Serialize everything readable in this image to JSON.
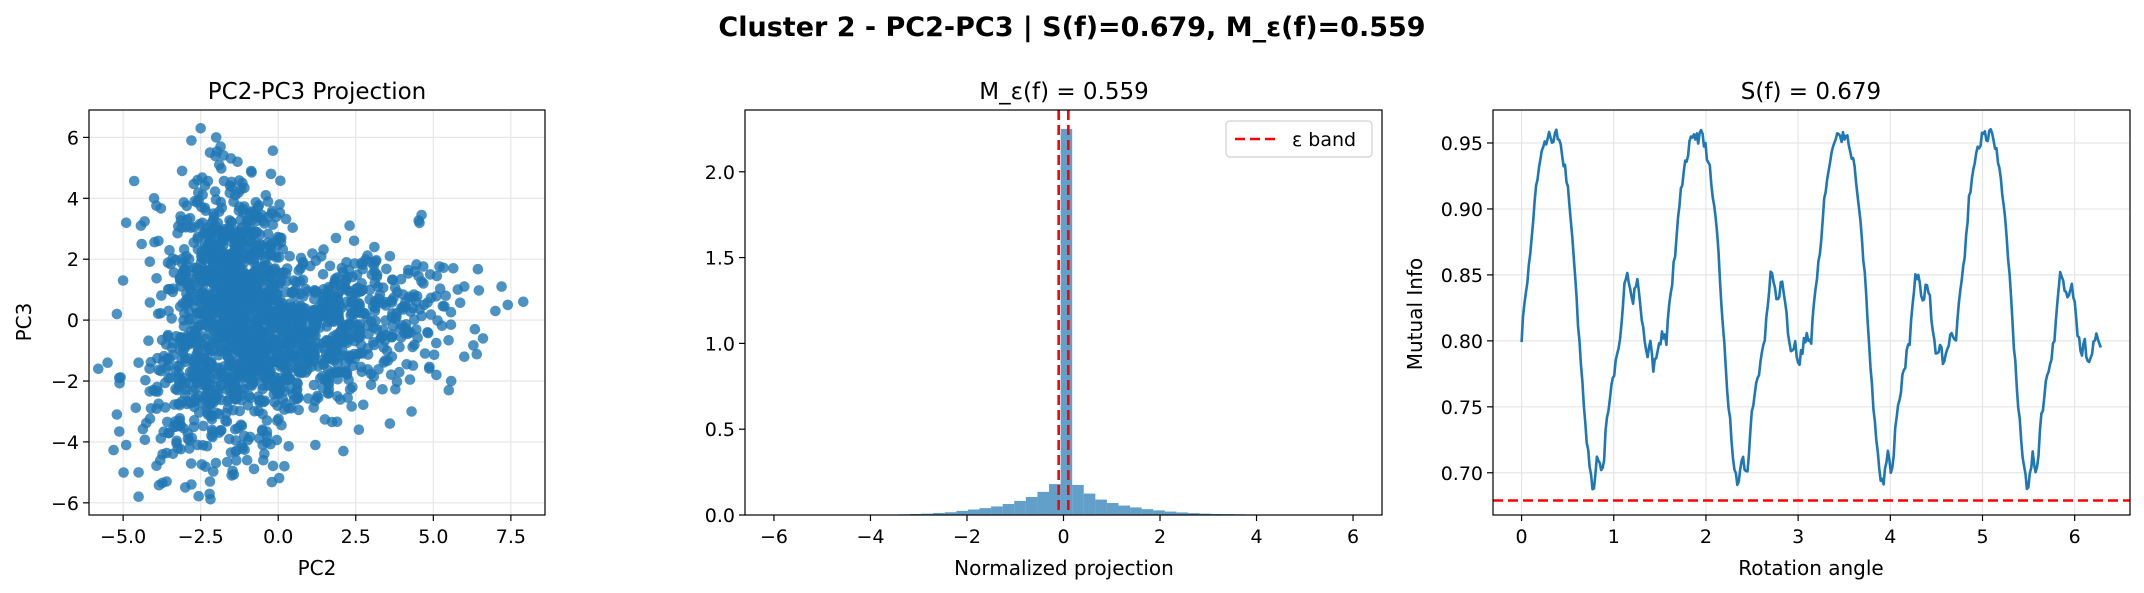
{
  "figure_title": "Cluster 2 - PC2-PC3 | S(f)=0.679, M_ε(f)=0.559",
  "colors": {
    "series": "#1f77b4",
    "reference": "#ff0000",
    "grid": "#e6e6e6"
  },
  "chart_data": [
    {
      "type": "scatter",
      "title": "PC2-PC3 Projection",
      "xlabel": "PC2",
      "ylabel": "PC3",
      "xlim": [
        -6.1,
        8.6
      ],
      "ylim": [
        -6.4,
        6.9
      ],
      "xticks": [
        -5.0,
        -2.5,
        0.0,
        2.5,
        5.0,
        7.5
      ],
      "yticks": [
        -6,
        -4,
        -2,
        0,
        2,
        4,
        6
      ],
      "xtick_labels": [
        "−5.0",
        "−2.5",
        "0.0",
        "2.5",
        "5.0",
        "7.5"
      ],
      "ytick_labels": [
        "−6",
        "−4",
        "−2",
        "0",
        "2",
        "4",
        "6"
      ],
      "grid": true,
      "points": [
        [
          -2.5,
          6.3
        ],
        [
          -2.0,
          6.0
        ],
        [
          -2.8,
          5.9
        ],
        [
          -2.2,
          5.5
        ],
        [
          -1.9,
          5.1
        ],
        [
          -3.1,
          4.9
        ],
        [
          -2.6,
          4.6
        ],
        [
          -1.2,
          4.3
        ],
        [
          -0.4,
          4.1
        ],
        [
          -0.2,
          3.5
        ],
        [
          -4.0,
          4.0
        ],
        [
          -4.9,
          3.2
        ],
        [
          -4.4,
          2.5
        ],
        [
          -5.0,
          1.3
        ],
        [
          -5.2,
          0.2
        ],
        [
          -5.5,
          -1.4
        ],
        [
          -5.8,
          -1.6
        ],
        [
          -5.2,
          -3.1
        ],
        [
          -4.9,
          -4.1
        ],
        [
          -4.5,
          -5.0
        ],
        [
          -4.5,
          -5.8
        ],
        [
          -3.6,
          -5.3
        ],
        [
          -3.8,
          -4.6
        ],
        [
          -2.8,
          -5.4
        ],
        [
          -2.2,
          -5.3
        ],
        [
          -1.5,
          -5.1
        ],
        [
          -1.0,
          -4.6
        ],
        [
          0.2,
          -4.8
        ],
        [
          1.2,
          -4.1
        ],
        [
          2.1,
          -4.3
        ],
        [
          2.6,
          -3.6
        ],
        [
          3.6,
          -3.4
        ],
        [
          4.3,
          -3.0
        ],
        [
          5.5,
          -2.3
        ],
        [
          5.1,
          -1.8
        ],
        [
          6.0,
          -1.2
        ],
        [
          6.6,
          -0.6
        ],
        [
          7.0,
          0.3
        ],
        [
          7.4,
          0.5
        ],
        [
          7.9,
          0.6
        ],
        [
          7.2,
          1.1
        ],
        [
          6.0,
          1.1
        ],
        [
          5.4,
          0.8
        ],
        [
          4.7,
          0.5
        ],
        [
          4.4,
          1.6
        ],
        [
          3.6,
          2.1
        ],
        [
          3.1,
          1.6
        ],
        [
          2.2,
          1.9
        ],
        [
          1.9,
          1.4
        ],
        [
          0.8,
          1.9
        ],
        [
          0.1,
          2.7
        ],
        [
          1.2,
          0.9
        ],
        [
          3.1,
          2.4
        ],
        [
          2.3,
          3.1
        ],
        [
          -1.7,
          -3.3
        ],
        [
          -0.6,
          -2.7
        ],
        [
          0.6,
          -2.6
        ],
        [
          1.6,
          -2.4
        ],
        [
          2.4,
          -1.5
        ],
        [
          3.4,
          -0.9
        ],
        [
          -3.3,
          -3.5
        ],
        [
          -4.1,
          -2.9
        ],
        [
          -4.5,
          -1.4
        ]
      ],
      "n_points": 1900
    },
    {
      "type": "bar",
      "title": "M_ε(f) = 0.559",
      "xlabel": "Normalized projection",
      "ylabel": "",
      "xlim": [
        -6.6,
        6.6
      ],
      "ylim": [
        0,
        2.36
      ],
      "xticks": [
        -6,
        -4,
        -2,
        0,
        2,
        4,
        6
      ],
      "yticks": [
        0.0,
        0.5,
        1.0,
        1.5,
        2.0
      ],
      "xtick_labels": [
        "−6",
        "−4",
        "−2",
        "0",
        "2",
        "4",
        "6"
      ],
      "ytick_labels": [
        "0.0",
        "0.5",
        "1.0",
        "1.5",
        "2.0"
      ],
      "bin_width": 0.24,
      "bins": [
        [
          -3.42,
          0.004
        ],
        [
          -3.18,
          0.006
        ],
        [
          -2.94,
          0.008
        ],
        [
          -2.7,
          0.012
        ],
        [
          -2.46,
          0.016
        ],
        [
          -2.22,
          0.024
        ],
        [
          -1.98,
          0.032
        ],
        [
          -1.74,
          0.04
        ],
        [
          -1.5,
          0.05
        ],
        [
          -1.26,
          0.064
        ],
        [
          -1.02,
          0.082
        ],
        [
          -0.78,
          0.105
        ],
        [
          -0.54,
          0.135
        ],
        [
          -0.3,
          0.18
        ],
        [
          -0.06,
          2.25
        ],
        [
          0.18,
          0.175
        ],
        [
          0.42,
          0.125
        ],
        [
          0.66,
          0.09
        ],
        [
          0.9,
          0.07
        ],
        [
          1.14,
          0.055
        ],
        [
          1.38,
          0.044
        ],
        [
          1.62,
          0.034
        ],
        [
          1.86,
          0.027
        ],
        [
          2.1,
          0.02
        ],
        [
          2.34,
          0.015
        ],
        [
          2.58,
          0.011
        ],
        [
          2.82,
          0.008
        ],
        [
          3.06,
          0.006
        ],
        [
          3.3,
          0.005
        ],
        [
          3.54,
          0.004
        ],
        [
          3.78,
          0.003
        ]
      ],
      "epsilon_band": [
        -0.1,
        0.1
      ],
      "legend_label": "ε band",
      "legend_position": "upper right"
    },
    {
      "type": "line",
      "title": "S(f) = 0.679",
      "xlabel": "Rotation angle",
      "ylabel": "Mutual Info",
      "xlim": [
        -0.31,
        6.6
      ],
      "ylim": [
        0.668,
        0.975
      ],
      "xticks": [
        0,
        1,
        2,
        3,
        4,
        5,
        6
      ],
      "yticks": [
        0.7,
        0.75,
        0.8,
        0.85,
        0.9,
        0.95
      ],
      "xtick_labels": [
        "0",
        "1",
        "2",
        "3",
        "4",
        "5",
        "6"
      ],
      "ytick_labels": [
        "0.70",
        "0.75",
        "0.80",
        "0.85",
        "0.90",
        "0.95"
      ],
      "grid": true,
      "period": 1.5708,
      "x_range": [
        0,
        6.283
      ],
      "series_profile": [
        [
          0.0,
          0.798
        ],
        [
          0.03,
          0.83
        ],
        [
          0.06,
          0.845
        ],
        [
          0.1,
          0.87
        ],
        [
          0.14,
          0.905
        ],
        [
          0.18,
          0.925
        ],
        [
          0.22,
          0.94
        ],
        [
          0.26,
          0.95
        ],
        [
          0.3,
          0.958
        ],
        [
          0.34,
          0.953
        ],
        [
          0.38,
          0.958
        ],
        [
          0.42,
          0.948
        ],
        [
          0.46,
          0.935
        ],
        [
          0.5,
          0.915
        ],
        [
          0.54,
          0.89
        ],
        [
          0.58,
          0.85
        ],
        [
          0.62,
          0.805
        ],
        [
          0.66,
          0.765
        ],
        [
          0.7,
          0.73
        ],
        [
          0.74,
          0.7
        ],
        [
          0.78,
          0.688
        ],
        [
          0.8,
          0.7
        ],
        [
          0.83,
          0.715
        ],
        [
          0.86,
          0.7
        ],
        [
          0.89,
          0.705
        ],
        [
          0.92,
          0.74
        ],
        [
          0.96,
          0.76
        ],
        [
          1.0,
          0.775
        ],
        [
          1.04,
          0.79
        ],
        [
          1.07,
          0.8
        ],
        [
          1.1,
          0.83
        ],
        [
          1.13,
          0.85
        ],
        [
          1.17,
          0.845
        ],
        [
          1.21,
          0.83
        ],
        [
          1.25,
          0.845
        ],
        [
          1.29,
          0.83
        ],
        [
          1.33,
          0.8
        ],
        [
          1.37,
          0.79
        ],
        [
          1.4,
          0.8
        ],
        [
          1.43,
          0.78
        ],
        [
          1.46,
          0.79
        ],
        [
          1.5,
          0.8
        ],
        [
          1.53,
          0.805
        ],
        [
          1.5708,
          0.798
        ]
      ],
      "reference_line": 0.679
    }
  ]
}
